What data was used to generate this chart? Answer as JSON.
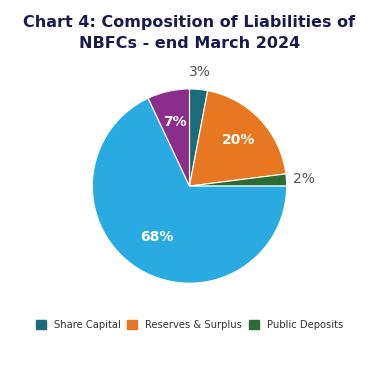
{
  "title": "Chart 4: Composition of Liabilities of\nNBFCs - end March 2024",
  "slices": [
    3,
    20,
    2,
    68,
    7
  ],
  "labels": [
    "3%",
    "20%",
    "2%",
    "68%",
    "7%"
  ],
  "colors": [
    "#1B6B7B",
    "#E87722",
    "#2D6B35",
    "#29ABE2",
    "#8B2D8B"
  ],
  "startangle": 90,
  "legend_items": [
    {
      "label": "Share Capital",
      "color": "#1B6B7B"
    },
    {
      "label": "Reserves & Surplus",
      "color": "#E87722"
    },
    {
      "label": "Public Deposits",
      "color": "#2D6B35"
    }
  ],
  "label_colors": [
    "#555555",
    "white",
    "#555555",
    "white",
    "white"
  ],
  "label_radii": [
    1.18,
    0.7,
    1.18,
    0.62,
    0.68
  ],
  "label_fontsize": 10,
  "label_bold": [
    false,
    true,
    false,
    true,
    true
  ],
  "title_fontsize": 11.5,
  "title_color": "#1a1a4e",
  "background_color": "#ffffff"
}
